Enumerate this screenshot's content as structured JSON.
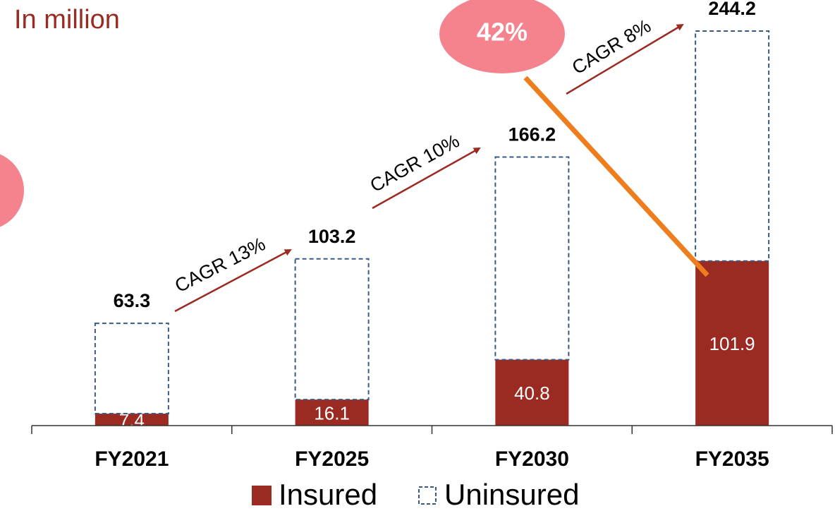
{
  "chart_data": {
    "type": "stacked_bar",
    "title": "In million",
    "categories": [
      "FY2021",
      "FY2025",
      "FY2030",
      "FY2035"
    ],
    "series": [
      {
        "name": "Insured",
        "color": "#9b2a22",
        "values": [
          7.4,
          16.1,
          40.8,
          101.9
        ]
      },
      {
        "name": "Uninsured",
        "color": "#3a5a80",
        "values": [
          55.9,
          87.1,
          125.4,
          142.3
        ]
      }
    ],
    "totals": [
      63.3,
      103.2,
      166.2,
      244.2
    ],
    "ylim": [
      0,
      263.4
    ],
    "annotations": [
      "CAGR 13%",
      "CAGR 10%",
      "CAGR 8%",
      "42%"
    ]
  }
}
